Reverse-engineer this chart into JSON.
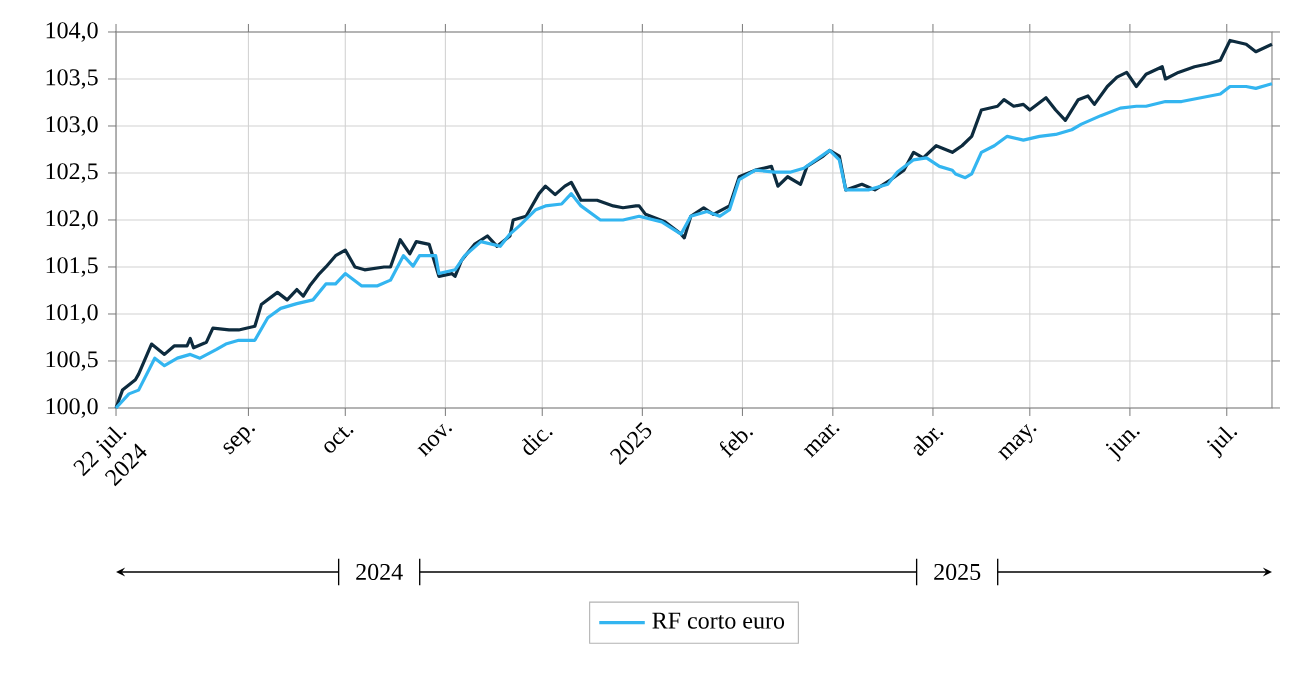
{
  "chart_data": {
    "type": "line",
    "x": [
      "2024-07-22",
      "2024-07-24",
      "2024-07-28",
      "2024-07-29",
      "2024-08-02",
      "2024-08-06",
      "2024-08-09",
      "2024-08-13",
      "2024-08-14",
      "2024-08-15",
      "2024-08-19",
      "2024-08-21",
      "2024-08-26",
      "2024-08-29",
      "2024-09-03",
      "2024-09-05",
      "2024-09-10",
      "2024-09-13",
      "2024-09-16",
      "2024-09-18",
      "2024-09-20",
      "2024-09-23",
      "2024-09-25",
      "2024-09-28",
      "2024-10-01",
      "2024-10-04",
      "2024-10-07",
      "2024-10-13",
      "2024-10-15",
      "2024-10-18",
      "2024-10-21",
      "2024-10-23",
      "2024-10-27",
      "2024-10-30",
      "2024-11-03",
      "2024-11-04",
      "2024-11-06",
      "2024-11-10",
      "2024-11-14",
      "2024-11-17",
      "2024-11-21",
      "2024-11-22",
      "2024-11-26",
      "2024-11-30",
      "2024-12-02",
      "2024-12-05",
      "2024-12-08",
      "2024-12-10",
      "2024-12-13",
      "2024-12-18",
      "2024-12-23",
      "2024-12-26",
      "2024-12-30",
      "2024-12-31",
      "2025-01-02",
      "2025-01-08",
      "2025-01-13",
      "2025-01-14",
      "2025-01-16",
      "2025-01-20",
      "2025-01-23",
      "2025-01-28",
      "2025-01-31",
      "2025-02-05",
      "2025-02-10",
      "2025-02-12",
      "2025-02-15",
      "2025-02-19",
      "2025-02-21",
      "2025-02-26",
      "2025-02-28",
      "2025-03-03",
      "2025-03-05",
      "2025-03-10",
      "2025-03-14",
      "2025-03-19",
      "2025-03-23",
      "2025-03-26",
      "2025-03-29",
      "2025-04-02",
      "2025-04-07",
      "2025-04-10",
      "2025-04-13",
      "2025-04-16",
      "2025-04-21",
      "2025-04-23",
      "2025-04-26",
      "2025-04-29",
      "2025-05-01",
      "2025-05-06",
      "2025-05-09",
      "2025-05-12",
      "2025-05-16",
      "2025-05-19",
      "2025-05-21",
      "2025-05-25",
      "2025-05-28",
      "2025-05-31",
      "2025-06-03",
      "2025-06-06",
      "2025-06-11",
      "2025-06-12",
      "2025-06-16",
      "2025-06-21",
      "2025-06-25",
      "2025-06-29",
      "2025-07-02",
      "2025-07-07",
      "2025-07-10",
      "2025-07-15"
    ],
    "series": [
      {
        "color": "#0d2b3e",
        "values": [
          100.0,
          100.19,
          100.3,
          100.36,
          100.68,
          100.57,
          100.66,
          100.66,
          100.74,
          100.64,
          100.7,
          100.85,
          100.83,
          100.83,
          100.87,
          101.1,
          101.23,
          101.15,
          101.26,
          101.19,
          101.3,
          101.43,
          101.5,
          101.62,
          101.68,
          101.5,
          101.47,
          101.5,
          101.5,
          101.79,
          101.64,
          101.77,
          101.74,
          101.4,
          101.43,
          101.4,
          101.57,
          101.74,
          101.83,
          101.72,
          101.83,
          102.0,
          102.04,
          102.28,
          102.36,
          102.27,
          102.36,
          102.4,
          102.21,
          102.21,
          102.15,
          102.13,
          102.15,
          102.15,
          102.06,
          101.98,
          101.85,
          101.81,
          102.04,
          102.13,
          102.06,
          102.15,
          102.46,
          102.53,
          102.57,
          102.36,
          102.46,
          102.38,
          102.57,
          102.68,
          102.74,
          102.68,
          102.32,
          102.38,
          102.32,
          102.43,
          102.53,
          102.72,
          102.66,
          102.79,
          102.72,
          102.79,
          102.89,
          103.17,
          103.21,
          103.28,
          103.21,
          103.23,
          103.17,
          103.3,
          103.17,
          103.06,
          103.28,
          103.32,
          103.23,
          103.42,
          103.52,
          103.57,
          103.42,
          103.55,
          103.63,
          103.5,
          103.57,
          103.63,
          103.66,
          103.7,
          103.91,
          103.87,
          103.79,
          103.87
        ]
      },
      {
        "name": "RF corto euro",
        "color": "#33b5f0",
        "x": [
          "2024-07-22",
          "2024-07-26",
          "2024-07-29",
          "2024-08-03",
          "2024-08-06",
          "2024-08-10",
          "2024-08-14",
          "2024-08-17",
          "2024-08-22",
          "2024-08-25",
          "2024-08-29",
          "2024-09-03",
          "2024-09-07",
          "2024-09-11",
          "2024-09-16",
          "2024-09-21",
          "2024-09-25",
          "2024-09-28",
          "2024-10-01",
          "2024-10-06",
          "2024-10-11",
          "2024-10-15",
          "2024-10-19",
          "2024-10-22",
          "2024-10-24",
          "2024-10-29",
          "2024-10-30",
          "2024-11-04",
          "2024-11-07",
          "2024-11-12",
          "2024-11-18",
          "2024-11-21",
          "2024-11-24",
          "2024-11-29",
          "2024-12-02",
          "2024-12-07",
          "2024-12-10",
          "2024-12-13",
          "2024-12-19",
          "2024-12-26",
          "2024-12-31",
          "2025-01-07",
          "2025-01-13",
          "2025-01-16",
          "2025-01-21",
          "2025-01-25",
          "2025-01-28",
          "2025-01-31",
          "2025-02-05",
          "2025-02-11",
          "2025-02-16",
          "2025-02-20",
          "2025-02-28",
          "2025-03-03",
          "2025-03-05",
          "2025-03-12",
          "2025-03-18",
          "2025-03-21",
          "2025-03-26",
          "2025-03-30",
          "2025-04-03",
          "2025-04-07",
          "2025-04-08",
          "2025-04-11",
          "2025-04-13",
          "2025-04-16",
          "2025-04-20",
          "2025-04-24",
          "2025-04-29",
          "2025-05-04",
          "2025-05-09",
          "2025-05-14",
          "2025-05-17",
          "2025-05-23",
          "2025-05-29",
          "2025-06-03",
          "2025-06-06",
          "2025-06-12",
          "2025-06-17",
          "2025-06-23",
          "2025-06-29",
          "2025-07-02",
          "2025-07-07",
          "2025-07-10",
          "2025-07-15"
        ],
        "values": [
          100.0,
          100.15,
          100.19,
          100.53,
          100.45,
          100.53,
          100.57,
          100.53,
          100.62,
          100.68,
          100.72,
          100.72,
          100.96,
          101.06,
          101.11,
          101.15,
          101.32,
          101.32,
          101.43,
          101.3,
          101.3,
          101.36,
          101.62,
          101.51,
          101.62,
          101.62,
          101.43,
          101.47,
          101.62,
          101.77,
          101.72,
          101.85,
          101.94,
          102.11,
          102.15,
          102.17,
          102.28,
          102.15,
          102.0,
          102.0,
          102.04,
          101.98,
          101.85,
          102.04,
          102.09,
          102.04,
          102.11,
          102.43,
          102.53,
          102.51,
          102.51,
          102.55,
          102.74,
          102.64,
          102.32,
          102.32,
          102.38,
          102.51,
          102.64,
          102.66,
          102.57,
          102.53,
          102.49,
          102.45,
          102.49,
          102.72,
          102.79,
          102.89,
          102.85,
          102.89,
          102.91,
          102.96,
          103.02,
          103.11,
          103.19,
          103.21,
          103.21,
          103.26,
          103.26,
          103.3,
          103.34,
          103.42,
          103.42,
          103.4,
          103.45
        ]
      }
    ],
    "xlim": [
      "2024-07-22",
      "2025-07-15"
    ],
    "xticks": [
      {
        "value": "2024-07-22",
        "label": "22 jul. 2024"
      },
      {
        "value": "2024-09-01",
        "label": "sep."
      },
      {
        "value": "2024-10-01",
        "label": "oct."
      },
      {
        "value": "2024-11-01",
        "label": "nov."
      },
      {
        "value": "2024-12-01",
        "label": "dic."
      },
      {
        "value": "2025-01-01",
        "label": "2025"
      },
      {
        "value": "2025-02-01",
        "label": "feb."
      },
      {
        "value": "2025-03-01",
        "label": "mar."
      },
      {
        "value": "2025-04-01",
        "label": "abr."
      },
      {
        "value": "2025-05-01",
        "label": "may."
      },
      {
        "value": "2025-06-01",
        "label": "jun."
      },
      {
        "value": "2025-07-01",
        "label": "jul."
      }
    ],
    "ylim": [
      100,
      104
    ],
    "yticks": [
      {
        "value": 100,
        "label": "100,0"
      },
      {
        "value": 100.5,
        "label": "100,5"
      },
      {
        "value": 101,
        "label": "101,0"
      },
      {
        "value": 101.5,
        "label": "101,5"
      },
      {
        "value": 102,
        "label": "102,0"
      },
      {
        "value": 102.5,
        "label": "102,5"
      },
      {
        "value": 103,
        "label": "103,0"
      },
      {
        "value": 103.5,
        "label": "103,5"
      },
      {
        "value": 104,
        "label": "104,0"
      }
    ],
    "annotations": [
      "2024",
      "2025"
    ],
    "grid": true,
    "legend": "bottom",
    "marker": "none",
    "line_style": "solid"
  }
}
